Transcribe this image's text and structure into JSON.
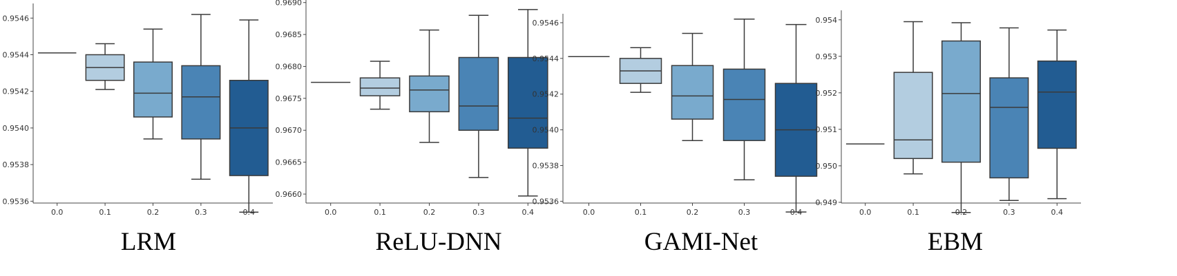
{
  "chart_data": [
    {
      "type": "box",
      "title": "LRM",
      "categories": [
        "0.0",
        "0.1",
        "0.2",
        "0.3",
        "0.4"
      ],
      "yticks": [
        "0.9536",
        "0.9538",
        "0.9540",
        "0.9542",
        "0.9544",
        "0.9546"
      ],
      "ylim": [
        0.95359,
        0.95468
      ],
      "boxes": [
        {
          "whislo": 0.95441,
          "q1": 0.95441,
          "med": 0.95441,
          "q3": 0.95441,
          "whishi": 0.95441
        },
        {
          "whislo": 0.95421,
          "q1": 0.95426,
          "med": 0.95433,
          "q3": 0.9544,
          "whishi": 0.95446
        },
        {
          "whislo": 0.95394,
          "q1": 0.95406,
          "med": 0.95419,
          "q3": 0.95436,
          "whishi": 0.95454
        },
        {
          "whislo": 0.95372,
          "q1": 0.95394,
          "med": 0.95417,
          "q3": 0.95434,
          "whishi": 0.95462
        },
        {
          "whislo": 0.95354,
          "q1": 0.95374,
          "med": 0.954,
          "q3": 0.95426,
          "whishi": 0.95459
        }
      ]
    },
    {
      "type": "box",
      "title": "ReLU-DNN",
      "categories": [
        "0.0",
        "0.1",
        "0.2",
        "0.3",
        "0.4"
      ],
      "yticks": [
        "0.9660",
        "0.9665",
        "0.9670",
        "0.9675",
        "0.9680",
        "0.9685",
        "0.9690"
      ],
      "ylim": [
        0.96586,
        0.96904
      ],
      "boxes": [
        {
          "whislo": 0.96775,
          "q1": 0.96775,
          "med": 0.96775,
          "q3": 0.96775,
          "whishi": 0.96775
        },
        {
          "whislo": 0.96733,
          "q1": 0.96754,
          "med": 0.96766,
          "q3": 0.96782,
          "whishi": 0.96808
        },
        {
          "whislo": 0.96681,
          "q1": 0.96729,
          "med": 0.96763,
          "q3": 0.96785,
          "whishi": 0.96857
        },
        {
          "whislo": 0.96626,
          "q1": 0.967,
          "med": 0.96738,
          "q3": 0.96814,
          "whishi": 0.9688
        },
        {
          "whislo": 0.96597,
          "q1": 0.96672,
          "med": 0.96719,
          "q3": 0.96814,
          "whishi": 0.96889
        }
      ]
    },
    {
      "type": "box",
      "title": "GAMI-Net",
      "categories": [
        "0.0",
        "0.1",
        "0.2",
        "0.3",
        "0.4"
      ],
      "yticks": [
        "0.9536",
        "0.9538",
        "0.9540",
        "0.9542",
        "0.9544",
        "0.9546"
      ],
      "ylim": [
        0.95359,
        0.95465
      ],
      "boxes": [
        {
          "whislo": 0.95441,
          "q1": 0.95441,
          "med": 0.95441,
          "q3": 0.95441,
          "whishi": 0.95441
        },
        {
          "whislo": 0.95421,
          "q1": 0.95426,
          "med": 0.95433,
          "q3": 0.9544,
          "whishi": 0.95446
        },
        {
          "whislo": 0.95394,
          "q1": 0.95406,
          "med": 0.95419,
          "q3": 0.95436,
          "whishi": 0.95454
        },
        {
          "whislo": 0.95372,
          "q1": 0.95394,
          "med": 0.95417,
          "q3": 0.95434,
          "whishi": 0.95462
        },
        {
          "whislo": 0.95354,
          "q1": 0.95374,
          "med": 0.954,
          "q3": 0.95426,
          "whishi": 0.95459
        }
      ]
    },
    {
      "type": "box",
      "title": "EBM",
      "categories": [
        "0.0",
        "0.1",
        "0.2",
        "0.3",
        "0.4"
      ],
      "yticks": [
        "0.949",
        "0.950",
        "0.951",
        "0.952",
        "0.953",
        "0.954"
      ],
      "ylim": [
        0.94898,
        0.95426
      ],
      "boxes": [
        {
          "whislo": 0.9506,
          "q1": 0.9506,
          "med": 0.9506,
          "q3": 0.9506,
          "whishi": 0.9506
        },
        {
          "whislo": 0.94978,
          "q1": 0.9502,
          "med": 0.95071,
          "q3": 0.95256,
          "whishi": 0.95395
        },
        {
          "whislo": 0.94872,
          "q1": 0.9501,
          "med": 0.95198,
          "q3": 0.95342,
          "whishi": 0.95392
        },
        {
          "whislo": 0.94905,
          "q1": 0.94967,
          "med": 0.9516,
          "q3": 0.95241,
          "whishi": 0.95378
        },
        {
          "whislo": 0.9491,
          "q1": 0.95048,
          "med": 0.95202,
          "q3": 0.95287,
          "whishi": 0.95372
        }
      ]
    }
  ],
  "colors": [
    "#b3cde0",
    "#79aacd",
    "#4a84b5",
    "#225c92"
  ],
  "line_color": "#3a3a3a"
}
